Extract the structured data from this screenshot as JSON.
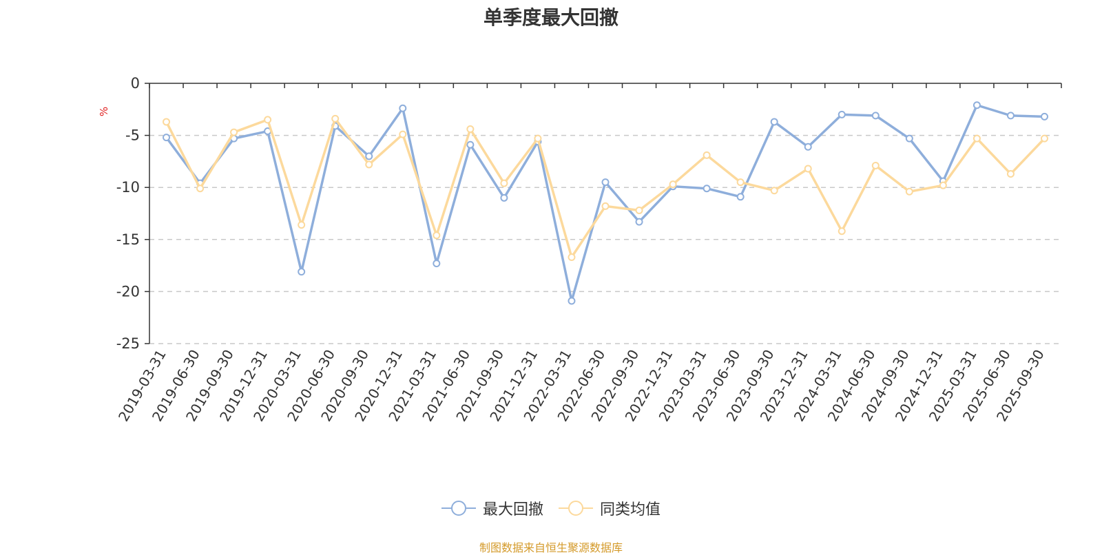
{
  "chart_data": {
    "type": "line",
    "title": "单季度最大回撤",
    "ylabel": "%",
    "xlabel": "",
    "ylim": [
      -25,
      0
    ],
    "yticks": [
      0,
      -5,
      -10,
      -15,
      -20,
      -25
    ],
    "ytick_labels": [
      "0",
      "-5",
      "-10",
      "-15",
      "-20",
      "-25"
    ],
    "grid": true,
    "legend_position": "bottom",
    "categories": [
      "2019-03-31",
      "2019-06-30",
      "2019-09-30",
      "2019-12-31",
      "2020-03-31",
      "2020-06-30",
      "2020-09-30",
      "2020-12-31",
      "2021-03-31",
      "2021-06-30",
      "2021-09-30",
      "2021-12-31",
      "2022-03-31",
      "2022-06-30",
      "2022-09-30",
      "2022-12-31",
      "2023-03-31",
      "2023-06-30",
      "2023-09-30",
      "2023-12-31",
      "2024-03-31",
      "2024-06-30",
      "2024-09-30",
      "2024-12-31",
      "2025-03-31",
      "2025-06-30",
      "2025-09-30"
    ],
    "series": [
      {
        "name": "最大回撤",
        "color": "#8eaedb",
        "values": [
          -5.2,
          -9.6,
          -5.3,
          -4.6,
          -18.1,
          -4.1,
          -7.0,
          -2.4,
          -17.3,
          -5.9,
          -11.0,
          -5.6,
          -20.9,
          -9.5,
          -13.3,
          -9.9,
          -10.1,
          -10.9,
          -3.7,
          -6.1,
          -3.0,
          -3.1,
          -5.3,
          -9.4,
          -2.1,
          -3.1,
          -3.2
        ]
      },
      {
        "name": "同类均值",
        "color": "#fcd99c",
        "values": [
          -3.7,
          -10.1,
          -4.7,
          -3.5,
          -13.6,
          -3.4,
          -7.8,
          -4.9,
          -14.6,
          -4.4,
          -9.6,
          -5.3,
          -16.7,
          -11.8,
          -12.2,
          -9.7,
          -6.9,
          -9.5,
          -10.3,
          -8.2,
          -14.2,
          -7.9,
          -10.4,
          -9.8,
          -5.3,
          -8.7,
          -5.3
        ]
      }
    ]
  },
  "footer": {
    "source": "制图数据来自恒生聚源数据库"
  }
}
